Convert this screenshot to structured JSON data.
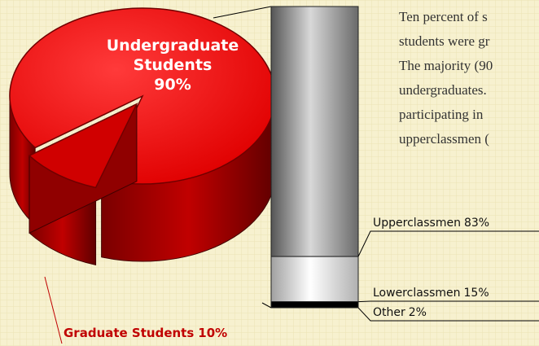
{
  "chart_data": [
    {
      "type": "pie",
      "categories": [
        "Undergraduate Students",
        "Graduate Students"
      ],
      "values": [
        90,
        10
      ],
      "value_labels": [
        "90%",
        "10%"
      ],
      "colors": [
        "#ff1010",
        "#d00000"
      ]
    },
    {
      "type": "stacked_bar",
      "categories": [
        "Upperclassmen",
        "Lowerclassmen",
        "Other"
      ],
      "values": [
        83,
        15,
        2
      ],
      "value_labels": [
        "83%",
        "15%",
        "2%"
      ],
      "colors": [
        "#8a8a8a",
        "#e0e0e0",
        "#000000"
      ]
    }
  ],
  "text": {
    "lines": [
      "Ten percent of s",
      "students were gr",
      "The majority (90",
      "undergraduates.",
      "participating in",
      "upperclassmen ("
    ]
  }
}
